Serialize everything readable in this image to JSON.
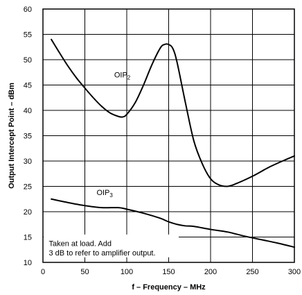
{
  "chart_data": {
    "type": "line",
    "xlabel": "f – Frequency – MHz",
    "ylabel": "Output Intercept Point – dBm",
    "xlim": [
      0,
      300
    ],
    "ylim": [
      10,
      60
    ],
    "xticks": [
      0,
      50,
      100,
      150,
      200,
      250,
      300
    ],
    "yticks": [
      10,
      15,
      20,
      25,
      30,
      35,
      40,
      45,
      50,
      55,
      60
    ],
    "grid": true,
    "series": [
      {
        "name": "OIP2",
        "label_main": "OIP",
        "label_sub": "2",
        "x": [
          10,
          20,
          30,
          40,
          50,
          60,
          70,
          80,
          90,
          95,
          100,
          110,
          120,
          130,
          140,
          145,
          150,
          155,
          160,
          170,
          180,
          190,
          200,
          210,
          220,
          230,
          250,
          270,
          290,
          300
        ],
        "y": [
          54,
          51.3,
          48.7,
          46.4,
          44.4,
          42.5,
          40.8,
          39.5,
          38.8,
          38.7,
          39.2,
          41.5,
          45,
          49,
          52.3,
          53,
          53,
          52.2,
          49.5,
          41.5,
          34,
          29.5,
          26.5,
          25.3,
          25,
          25.5,
          27,
          28.8,
          30.3,
          31
        ]
      },
      {
        "name": "OIP3",
        "label_main": "OIP",
        "label_sub": "3",
        "x": [
          10,
          30,
          50,
          70,
          90,
          100,
          120,
          140,
          150,
          160,
          170,
          180,
          200,
          220,
          240,
          260,
          280,
          300
        ],
        "y": [
          22.5,
          21.8,
          21.2,
          20.8,
          20.8,
          20.5,
          19.7,
          18.7,
          18,
          17.5,
          17.2,
          17.1,
          16.5,
          16,
          15.2,
          14.5,
          13.8,
          13
        ]
      }
    ],
    "annotation_lines": [
      "Taken at load. Add",
      "3 dB to refer to amplifier output."
    ]
  }
}
